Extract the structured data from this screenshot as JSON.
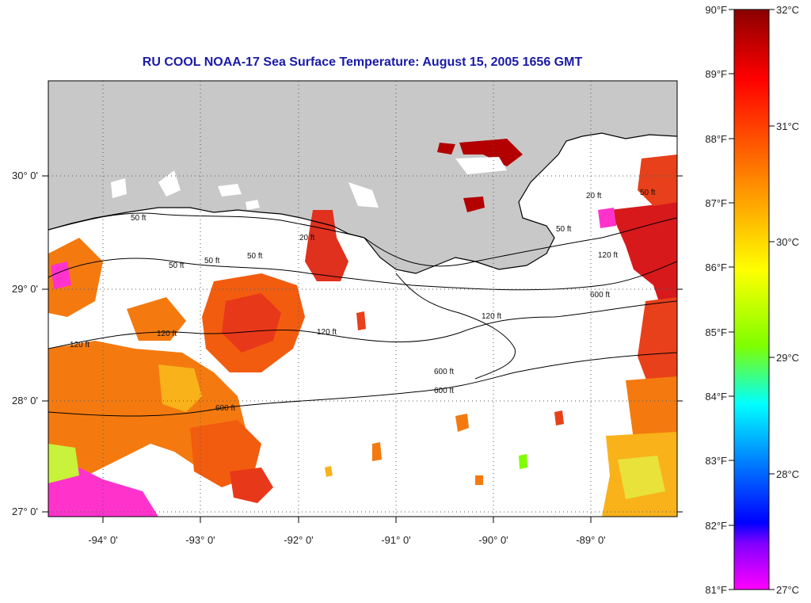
{
  "title": "RU COOL  NOAA-17  Sea Surface Temperature:  August 15, 2005 1656 GMT",
  "map": {
    "lon_labels": [
      "-94° 0'",
      "-93° 0'",
      "-92° 0'",
      "-91° 0'",
      "-90° 0'",
      "-89° 0'"
    ],
    "lat_labels": [
      "30° 0'",
      "29° 0'",
      "28° 0'",
      "27° 0'"
    ],
    "contour_labels": [
      "50 ft",
      "50 ft",
      "50 ft",
      "50 ft",
      "20 ft",
      "120 ft",
      "120 ft",
      "120 ft",
      "120 ft",
      "600 ft",
      "600 ft",
      "600 ft",
      "20 ft",
      "50 ft",
      "50 ft",
      "120 ft",
      "600 ft"
    ],
    "colors": {
      "land": "#c8c8c8",
      "water_cloud": "#ffffff",
      "contour": "#000000",
      "grid": "#555555"
    }
  },
  "colorbar": {
    "fahrenheit_labels": [
      "90°F",
      "89°F",
      "88°F",
      "87°F",
      "86°F",
      "85°F",
      "84°F",
      "83°F",
      "82°F",
      "81°F"
    ],
    "celsius_labels": [
      "32°C",
      "31°C",
      "30°C",
      "29°C",
      "28°C",
      "27°C"
    ],
    "min_f": 81,
    "max_f": 90,
    "gradient": [
      "#8b0000",
      "#ff0000",
      "#ff8c00",
      "#ffff00",
      "#7fff00",
      "#00ffff",
      "#0000ff",
      "#8000ff",
      "#ff00ff"
    ]
  }
}
